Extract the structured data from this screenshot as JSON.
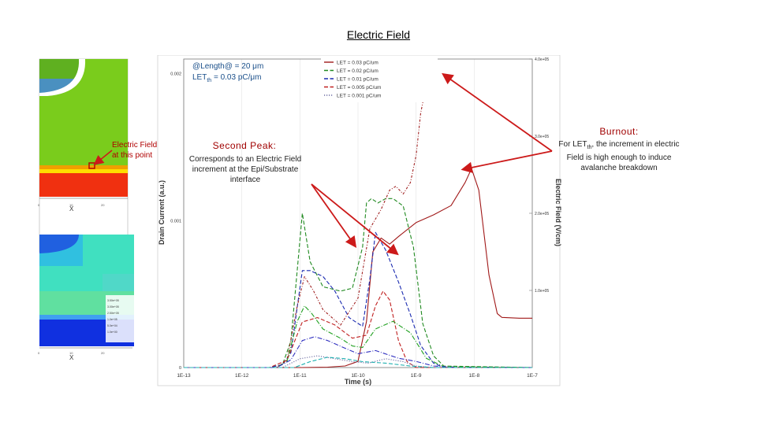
{
  "slide_title": "Electric Field",
  "annotations": {
    "length_line": "@Length@ = 20 μm",
    "let_prefix": "LET",
    "let_sub": "th",
    "let_suffix": " = 0.03 pC/μm",
    "field_point_line1": "Electric Field",
    "field_point_line2": "at this point",
    "second_peak_title": "Second Peak:",
    "second_peak_body": "Corresponds to an Electric Field increment at the Epi/Substrate interface",
    "burnout_title": "Burnout:",
    "burnout_prefix": "For LET",
    "burnout_sub": "th",
    "burnout_body": ", the increment in electric Field is high enough to induce avalanche breakdown"
  },
  "device_plots": {
    "x_label": "X",
    "x_ticks": [
      "0",
      "10",
      "20"
    ],
    "legend_values": [
      "3.50e+05",
      "3.00e+05",
      "2.50e+05",
      "1.0e+05",
      "5.0e+04",
      "1.0e+00"
    ],
    "colors": {
      "green": "#7acc1c",
      "red": "#f03010",
      "orange": "#f0a000",
      "blue": "#1030e0",
      "cyan": "#20c0c0",
      "teal": "#20b080"
    }
  },
  "chart_data": {
    "type": "line",
    "xlabel": "Time (s)",
    "ylabel": "Drain Current (a.u.)",
    "y2label": "Electric Field (V/cm)",
    "x_scale": "log",
    "xlim": [
      1e-13,
      1e-07
    ],
    "x_ticks": [
      "1E-13",
      "1E-12",
      "1E-11",
      "1E-10",
      "1E-9",
      "1E-8",
      "1E-7"
    ],
    "ylim": [
      0,
      0.0021
    ],
    "y_ticks": [
      "0",
      "0.001",
      "0.002"
    ],
    "y2lim": [
      0,
      400000
    ],
    "y2_ticks": [
      "1.0e+05",
      "2.0e+05",
      "3.0e+05",
      "4.0e+05"
    ],
    "legend_position": "top-right",
    "series": [
      {
        "name": "LET = 0.03 pC/um",
        "color": "#a01818",
        "style": "solid",
        "axis": "y2",
        "points": [
          [
            1e-13,
            0
          ],
          [
            1e-11,
            0
          ],
          [
            3e-11,
            500
          ],
          [
            6e-11,
            2000
          ],
          [
            1e-10,
            8000
          ],
          [
            1.4e-10,
            60000
          ],
          [
            1.8e-10,
            150000
          ],
          [
            2.5e-10,
            168000
          ],
          [
            3.5e-10,
            160000
          ],
          [
            5e-10,
            170000
          ],
          [
            1e-09,
            188000
          ],
          [
            2e-09,
            198000
          ],
          [
            4e-09,
            210000
          ],
          [
            7e-09,
            240000
          ],
          [
            9e-09,
            258000
          ],
          [
            1.2e-08,
            230000
          ],
          [
            1.8e-08,
            120000
          ],
          [
            2.5e-08,
            70000
          ],
          [
            3e-08,
            65000
          ],
          [
            6e-08,
            64000
          ],
          [
            1e-07,
            64000
          ]
        ]
      },
      {
        "name": "LET = 0.02 pC/um",
        "color": "#208a20",
        "style": "dashed",
        "axis": "y1",
        "points": [
          [
            1e-13,
            0
          ],
          [
            1e-12,
            0
          ],
          [
            3e-12,
            0
          ],
          [
            5e-12,
            2e-05
          ],
          [
            7e-12,
            0.00018
          ],
          [
            1.1e-11,
            0.00105
          ],
          [
            1.5e-11,
            0.00072
          ],
          [
            2.5e-11,
            0.00055
          ],
          [
            5e-11,
            0.00052
          ],
          [
            8e-11,
            0.00054
          ],
          [
            1.2e-10,
            0.00082
          ],
          [
            1.4e-10,
            0.00112
          ],
          [
            1.7e-10,
            0.00115
          ],
          [
            2.2e-10,
            0.00112
          ],
          [
            3e-10,
            0.00115
          ],
          [
            4e-10,
            0.00115
          ],
          [
            6e-10,
            0.0011
          ],
          [
            9e-10,
            0.00082
          ],
          [
            1.3e-09,
            0.0003
          ],
          [
            2e-09,
            8e-05
          ],
          [
            3e-09,
            1e-05
          ],
          [
            1e-07,
            0
          ]
        ]
      },
      {
        "name": "LET = 0.01 pC/um",
        "color": "#1a2ab0",
        "style": "dashed",
        "axis": "y1",
        "points": [
          [
            1e-13,
            0
          ],
          [
            3e-12,
            0
          ],
          [
            5e-12,
            2e-05
          ],
          [
            7e-12,
            0.0001
          ],
          [
            1.1e-11,
            0.00066
          ],
          [
            1.5e-11,
            0.00066
          ],
          [
            2.5e-11,
            0.00062
          ],
          [
            4e-11,
            0.00052
          ],
          [
            7e-11,
            0.00034
          ],
          [
            1.2e-10,
            0.00028
          ],
          [
            1.6e-10,
            0.0006
          ],
          [
            2e-10,
            0.00092
          ],
          [
            3e-10,
            0.0008
          ],
          [
            5e-10,
            0.00058
          ],
          [
            8e-10,
            0.00036
          ],
          [
            1.2e-09,
            0.00015
          ],
          [
            2e-09,
            3e-05
          ],
          [
            3e-09,
            0
          ],
          [
            1e-07,
            0
          ]
        ]
      },
      {
        "name": "LET = 0.005 pC/um",
        "color": "#c02020",
        "style": "dashed",
        "axis": "y1",
        "points": [
          [
            1e-13,
            0
          ],
          [
            3e-12,
            0
          ],
          [
            6e-12,
            5e-05
          ],
          [
            1.1e-11,
            0.00031
          ],
          [
            2e-11,
            0.00034
          ],
          [
            4e-11,
            0.00029
          ],
          [
            8e-11,
            0.0002
          ],
          [
            1.4e-10,
            0.00022
          ],
          [
            2e-10,
            0.00042
          ],
          [
            2.7e-10,
            0.00052
          ],
          [
            3.5e-10,
            0.00046
          ],
          [
            5e-10,
            0.00018
          ],
          [
            7e-10,
            4e-05
          ],
          [
            1e-09,
            0
          ],
          [
            1e-07,
            0
          ]
        ]
      },
      {
        "name": "LET = 0.001 pC/um",
        "color": "#6a6aa0",
        "style": "dotted",
        "axis": "y1",
        "points": [
          [
            1e-13,
            0
          ],
          [
            5e-12,
            0
          ],
          [
            1e-11,
            6e-05
          ],
          [
            2e-11,
            8e-05
          ],
          [
            4e-11,
            6e-05
          ],
          [
            8e-11,
            4e-05
          ],
          [
            1.5e-10,
            3e-05
          ],
          [
            3e-10,
            6e-05
          ],
          [
            6e-10,
            4e-05
          ],
          [
            1e-09,
            1e-05
          ],
          [
            2e-09,
            0
          ],
          [
            1e-07,
            0
          ]
        ]
      },
      {
        "name": "",
        "color": "#a02020",
        "style": "dotdash",
        "axis": "y2",
        "points": [
          [
            1e-13,
            0
          ],
          [
            4e-12,
            0
          ],
          [
            6e-12,
            10000
          ],
          [
            9e-12,
            80000
          ],
          [
            1.2e-11,
            118000
          ],
          [
            1.7e-11,
            100000
          ],
          [
            2.5e-11,
            75000
          ],
          [
            5e-11,
            55000
          ],
          [
            1e-10,
            90000
          ],
          [
            1.6e-10,
            180000
          ],
          [
            2.5e-10,
            205000
          ],
          [
            3.5e-10,
            230000
          ],
          [
            4.5e-10,
            235000
          ],
          [
            6e-10,
            225000
          ],
          [
            8e-10,
            240000
          ],
          [
            1e-09,
            275000
          ],
          [
            1.2e-09,
            330000
          ],
          [
            1.4e-09,
            355000
          ],
          [
            1.8e-09,
            380000
          ],
          [
            2.2e-09,
            395000
          ]
        ]
      },
      {
        "name": "",
        "color": "#20a020",
        "style": "dashdot",
        "axis": "y2",
        "points": [
          [
            1e-13,
            0
          ],
          [
            4e-12,
            0
          ],
          [
            6e-12,
            8000
          ],
          [
            9e-12,
            60000
          ],
          [
            1.2e-11,
            80000
          ],
          [
            1.6e-11,
            70000
          ],
          [
            2.5e-11,
            50000
          ],
          [
            5e-11,
            38000
          ],
          [
            8e-11,
            28000
          ],
          [
            1.2e-10,
            26000
          ],
          [
            2e-10,
            50000
          ],
          [
            4e-10,
            60000
          ],
          [
            8e-10,
            45000
          ],
          [
            1.5e-09,
            12000
          ],
          [
            3e-09,
            1000
          ],
          [
            1e-07,
            0
          ]
        ]
      },
      {
        "name": "",
        "color": "#3030c0",
        "style": "dashdot",
        "axis": "y2",
        "points": [
          [
            1e-13,
            0
          ],
          [
            4e-12,
            0
          ],
          [
            7e-12,
            10000
          ],
          [
            1.1e-11,
            35000
          ],
          [
            1.8e-11,
            40000
          ],
          [
            3e-11,
            35000
          ],
          [
            6e-11,
            25000
          ],
          [
            1e-10,
            18000
          ],
          [
            2e-10,
            22000
          ],
          [
            5e-10,
            12000
          ],
          [
            1e-09,
            8000
          ],
          [
            2e-09,
            2000
          ],
          [
            5e-09,
            0
          ],
          [
            1e-07,
            0
          ]
        ]
      },
      {
        "name": "",
        "color": "#20b0b0",
        "style": "dashed",
        "axis": "y1",
        "points": [
          [
            1e-13,
            0
          ],
          [
            8e-12,
            0
          ],
          [
            1.5e-11,
            4e-05
          ],
          [
            3e-11,
            7e-05
          ],
          [
            6e-11,
            6e-05
          ],
          [
            1.2e-10,
            4e-05
          ],
          [
            3e-10,
            3e-05
          ],
          [
            8e-10,
            1e-05
          ],
          [
            2e-09,
            0
          ],
          [
            1e-07,
            0
          ]
        ]
      }
    ]
  }
}
